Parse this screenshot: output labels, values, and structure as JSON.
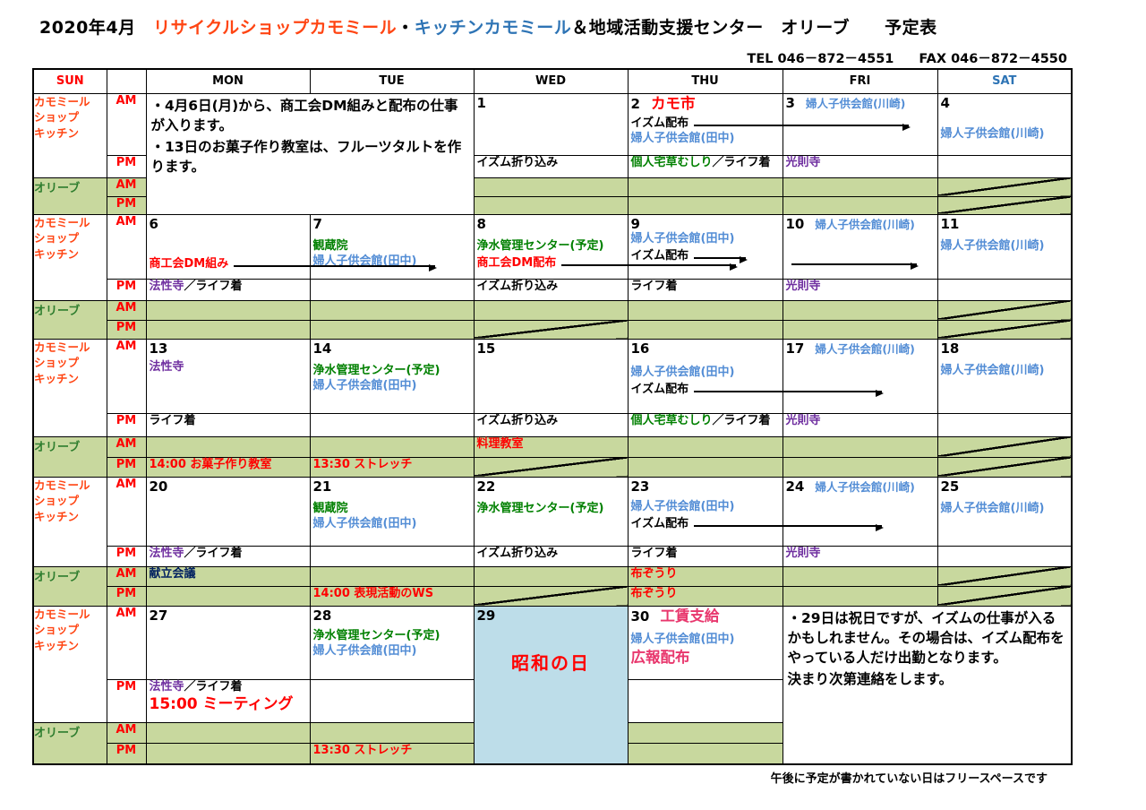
{
  "colors": {
    "red": "#ff0000",
    "orange": "#ff4513",
    "bluet": "#2e74b5",
    "blue": "#538dd5",
    "green": "#008000",
    "greenlab": "#2e7d2e",
    "purple": "#7030a0",
    "navy": "#002060",
    "pink": "#e8376d",
    "olive_bg": "#c8d89e",
    "lightblue_bg": "#bddde9"
  },
  "title": {
    "prefix": "2020年4月　",
    "part1": "リサイクルショップカモミール",
    "dot": "・",
    "part2": "キッチンカモミール",
    "suffix": "＆地域活動支援センター　オリーブ　　予定表"
  },
  "contact": {
    "tel": "TEL 046－872－4551",
    "fax": "FAX 046－872－4550"
  },
  "footnote": "午後に予定が書かれていない日はフリースペースです",
  "header": {
    "days": [
      "SUN",
      "",
      "MON",
      "TUE",
      "WED",
      "THU",
      "FRI",
      "SAT"
    ]
  },
  "row_labels": {
    "shop": [
      "カモミール",
      "ショップ",
      "キッチン"
    ],
    "olive": "オリーブ",
    "am": "AM",
    "pm": "PM"
  },
  "weeks": [
    {
      "merges": [
        {
          "col": 0,
          "cols": 2,
          "kind": "note",
          "text": [
            "・4月6日(月)から、商工会DM組みと配布の仕事が入ります。",
            "・13日のお菓子作り教室は、フルーツタルトを作ります。"
          ]
        }
      ],
      "days": [
        null,
        null,
        {
          "n": "1",
          "pm": [
            {
              "segs": [
                {
                  "t": "イズム折り込み",
                  "c": "black"
                }
              ]
            }
          ]
        },
        {
          "n": "2",
          "nx": [
            {
              "t": "カモ市",
              "c": "red",
              "big": true
            }
          ],
          "am": [
            {
              "mt": 2,
              "segs": [
                {
                  "t": "イズム配布",
                  "c": "black"
                },
                {
                  "arrow": 240
                }
              ]
            },
            {
              "segs": [
                {
                  "t": "婦人子供会館(田中)",
                  "c": "blue"
                }
              ]
            }
          ],
          "pm": [
            {
              "segs": [
                {
                  "t": "個人宅草むしり",
                  "c": "green"
                },
                {
                  "t": "／ライフ着",
                  "c": "black"
                }
              ]
            }
          ]
        },
        {
          "n": "3",
          "nx": [
            {
              "t": "婦人子供会館(川崎)",
              "c": "blue"
            }
          ],
          "pm": [
            {
              "segs": [
                {
                  "t": "光則寺",
                  "c": "purple"
                }
              ]
            }
          ]
        },
        {
          "n": "4",
          "am": [
            {
              "mt": 18,
              "segs": [
                {
                  "t": "婦人子供会館(川崎)",
                  "c": "blue"
                }
              ]
            }
          ],
          "diag": [
            "oam",
            "opm"
          ]
        }
      ]
    },
    {
      "merges": [],
      "days": [
        {
          "n": "6",
          "am": [
            {
              "mt": 26,
              "segs": [
                {
                  "t": "商工会DM組み",
                  "c": "red"
                },
                {
                  "arrow": 225
                }
              ]
            }
          ],
          "pm": [
            {
              "segs": [
                {
                  "t": "法性寺",
                  "c": "purple"
                },
                {
                  "t": "／ライフ着",
                  "c": "black"
                }
              ]
            }
          ]
        },
        {
          "n": "7",
          "am": [
            {
              "mt": 8,
              "segs": [
                {
                  "t": "観蔵院",
                  "c": "green"
                }
              ]
            },
            {
              "segs": [
                {
                  "t": "婦人子供会館(田中)",
                  "c": "blue"
                }
              ]
            }
          ]
        },
        {
          "n": "8",
          "am": [
            {
              "mt": 8,
              "segs": [
                {
                  "t": "浄水管理センター(予定)",
                  "c": "green"
                }
              ]
            },
            {
              "segs": [
                {
                  "t": "商工会DM配布",
                  "c": "red"
                },
                {
                  "arrow": 195
                }
              ]
            }
          ],
          "pm": [
            {
              "segs": [
                {
                  "t": "イズム折り込み",
                  "c": "black"
                }
              ]
            }
          ],
          "diag": [
            "opm"
          ]
        },
        {
          "n": "9",
          "am": [
            {
              "segs": [
                {
                  "t": "婦人子供会館(田中)",
                  "c": "blue"
                }
              ]
            },
            {
              "segs": [
                {
                  "t": "イズム配布",
                  "c": "black"
                },
                {
                  "arrow": 58
                }
              ]
            }
          ],
          "pm": [
            {
              "segs": [
                {
                  "t": "ライフ着",
                  "c": "black"
                }
              ]
            }
          ]
        },
        {
          "n": "10",
          "nx": [
            {
              "t": "婦人子供会館(川崎)",
              "c": "blue"
            }
          ],
          "am": [
            {
              "mt": 24,
              "segs": [
                {
                  "arrow": 140
                }
              ]
            }
          ],
          "pm": [
            {
              "segs": [
                {
                  "t": "光則寺",
                  "c": "purple"
                }
              ]
            }
          ]
        },
        {
          "n": "11",
          "am": [
            {
              "mt": 8,
              "segs": [
                {
                  "t": "婦人子供会館(川崎)",
                  "c": "blue"
                }
              ]
            }
          ],
          "diag": [
            "oam",
            "opm"
          ]
        }
      ]
    },
    {
      "merges": [],
      "days": [
        {
          "n": "13",
          "am": [
            {
              "mt": 4,
              "segs": [
                {
                  "t": "法性寺",
                  "c": "purple"
                }
              ]
            }
          ],
          "pm": [
            {
              "segs": [
                {
                  "t": "ライフ着",
                  "c": "black"
                }
              ]
            }
          ],
          "opm": [
            {
              "segs": [
                {
                  "t": "14:00  お菓子作り教室",
                  "c": "red"
                }
              ]
            }
          ]
        },
        {
          "n": "14",
          "am": [
            {
              "mt": 8,
              "segs": [
                {
                  "t": "浄水管理センター(予定)",
                  "c": "green"
                }
              ]
            },
            {
              "segs": [
                {
                  "t": "婦人子供会館(田中)",
                  "c": "blue"
                }
              ]
            }
          ],
          "opm": [
            {
              "segs": [
                {
                  "t": "13:30  ストレッチ",
                  "c": "red"
                }
              ]
            }
          ]
        },
        {
          "n": "15",
          "pm": [
            {
              "segs": [
                {
                  "t": "イズム折り込み",
                  "c": "black"
                }
              ]
            }
          ],
          "oam": [
            {
              "segs": [
                {
                  "t": "料理教室",
                  "c": "red"
                }
              ]
            }
          ],
          "diag": [
            "opm"
          ]
        },
        {
          "n": "16",
          "am": [
            {
              "mt": 10,
              "segs": [
                {
                  "t": "婦人子供会館(田中)",
                  "c": "blue"
                }
              ]
            },
            {
              "segs": [
                {
                  "t": "イズム配布",
                  "c": "black"
                },
                {
                  "arrow": 210
                }
              ]
            }
          ],
          "pm": [
            {
              "wrap": true,
              "segs": [
                {
                  "t": "個人宅草むしり",
                  "c": "green"
                },
                {
                  "t": "／ライフ着",
                  "c": "black"
                }
              ]
            }
          ]
        },
        {
          "n": "17",
          "nx": [
            {
              "t": "婦人子供会館(川崎)",
              "c": "blue"
            }
          ],
          "pm": [
            {
              "segs": [
                {
                  "t": "光則寺",
                  "c": "purple"
                }
              ]
            }
          ]
        },
        {
          "n": "18",
          "am": [
            {
              "mt": 8,
              "segs": [
                {
                  "t": "婦人子供会館(川崎)",
                  "c": "blue"
                }
              ]
            }
          ],
          "diag": [
            "oam",
            "opm"
          ]
        }
      ]
    },
    {
      "merges": [],
      "days": [
        {
          "n": "20",
          "pm": [
            {
              "segs": [
                {
                  "t": "法性寺",
                  "c": "purple"
                },
                {
                  "t": "／ライフ着",
                  "c": "black"
                }
              ]
            }
          ],
          "oam": [
            {
              "segs": [
                {
                  "t": "献立会議",
                  "c": "navy"
                }
              ]
            }
          ]
        },
        {
          "n": "21",
          "am": [
            {
              "mt": 8,
              "segs": [
                {
                  "t": "観蔵院",
                  "c": "green"
                }
              ]
            },
            {
              "segs": [
                {
                  "t": "婦人子供会館(田中)",
                  "c": "blue"
                }
              ]
            }
          ],
          "opm": [
            {
              "segs": [
                {
                  "t": "14:00  表現活動のWS",
                  "c": "red"
                }
              ]
            }
          ]
        },
        {
          "n": "22",
          "am": [
            {
              "mt": 8,
              "segs": [
                {
                  "t": "浄水管理センター(予定)",
                  "c": "green"
                }
              ]
            }
          ],
          "pm": [
            {
              "segs": [
                {
                  "t": "イズム折り込み",
                  "c": "black"
                }
              ]
            }
          ],
          "diag": [
            "opm"
          ]
        },
        {
          "n": "23",
          "am": [
            {
              "mt": 6,
              "segs": [
                {
                  "t": "婦人子供会館(田中)",
                  "c": "blue"
                }
              ]
            },
            {
              "segs": [
                {
                  "t": "イズム配布",
                  "c": "black"
                },
                {
                  "arrow": 210
                }
              ]
            }
          ],
          "pm": [
            {
              "segs": [
                {
                  "t": "ライフ着",
                  "c": "black"
                }
              ]
            }
          ],
          "oam": [
            {
              "segs": [
                {
                  "t": "布ぞうり",
                  "c": "red"
                }
              ]
            }
          ],
          "opm": [
            {
              "segs": [
                {
                  "t": "布ぞうり",
                  "c": "red"
                }
              ]
            }
          ]
        },
        {
          "n": "24",
          "nx": [
            {
              "t": "婦人子供会館(川崎)",
              "c": "blue"
            }
          ],
          "pm": [
            {
              "segs": [
                {
                  "t": "光則寺",
                  "c": "purple"
                }
              ]
            }
          ]
        },
        {
          "n": "25",
          "am": [
            {
              "mt": 8,
              "segs": [
                {
                  "t": "婦人子供会館(川崎)",
                  "c": "blue"
                }
              ]
            }
          ],
          "diag": [
            "oam",
            "opm"
          ]
        }
      ]
    },
    {
      "merges": [
        {
          "col": 2,
          "cols": 1,
          "kind": "holiday",
          "n": "29",
          "label": "昭和の日"
        },
        {
          "col": 4,
          "cols": 2,
          "kind": "note",
          "text": [
            "・29日は祝日ですが、イズムの仕事が入るかもしれません。その場合は、イズム配布をやっている人だけ出勤となります。",
            "決まり次第連絡をします。"
          ]
        }
      ],
      "days": [
        {
          "n": "27",
          "pm": [
            {
              "segs": [
                {
                  "t": "法性寺",
                  "c": "purple"
                },
                {
                  "t": "／ライフ着",
                  "c": "black"
                }
              ]
            },
            {
              "segs": [
                {
                  "t": "15:00  ミーティング",
                  "c": "red",
                  "xl": true
                }
              ]
            }
          ]
        },
        {
          "n": "28",
          "am": [
            {
              "mt": 6,
              "segs": [
                {
                  "t": "浄水管理センター(予定)",
                  "c": "green"
                }
              ]
            },
            {
              "segs": [
                {
                  "t": "婦人子供会館(田中)",
                  "c": "blue"
                }
              ]
            }
          ],
          "opm": [
            {
              "segs": [
                {
                  "t": "13:30  ストレッチ",
                  "c": "red"
                }
              ]
            }
          ]
        },
        null,
        {
          "n": "30",
          "nx": [
            {
              "t": "工賃支給",
              "c": "pink",
              "big": true
            }
          ],
          "am": [
            {
              "mt": 8,
              "segs": [
                {
                  "t": "婦人子供会館(田中)",
                  "c": "blue"
                }
              ]
            },
            {
              "segs": [
                {
                  "t": "広報配布",
                  "c": "pink",
                  "big": true
                }
              ]
            }
          ]
        },
        null,
        null
      ]
    }
  ]
}
